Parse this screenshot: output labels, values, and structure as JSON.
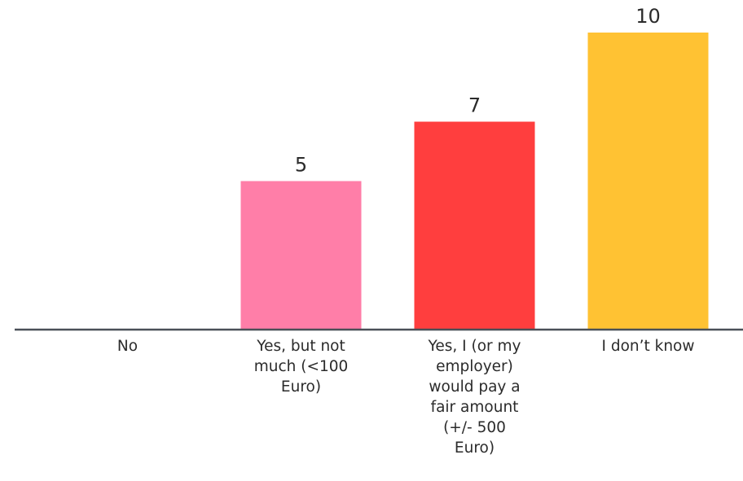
{
  "chart_data": {
    "type": "bar",
    "title": "",
    "xlabel": "",
    "ylabel": "",
    "ylim": [
      0,
      10
    ],
    "categories": [
      [
        "No"
      ],
      [
        "Yes, but not",
        "much (<100",
        "Euro)"
      ],
      [
        "Yes, I (or my",
        "employer)",
        "would pay a",
        "fair amount",
        "(+/- 500",
        "Euro)"
      ],
      [
        "I don’t know"
      ]
    ],
    "values": [
      0,
      5,
      7,
      10
    ],
    "value_labels": [
      "",
      "5",
      "7",
      "10"
    ],
    "colors": [
      "#ff7ea8",
      "#ff7ea8",
      "#ff3e3e",
      "#ffc233"
    ],
    "axis_color": "#4a5058",
    "grid": false,
    "legend": "none"
  }
}
